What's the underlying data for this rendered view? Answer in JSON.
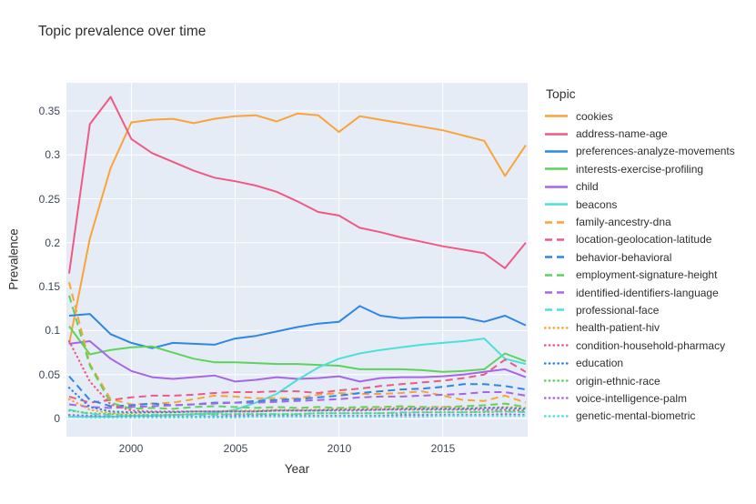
{
  "title": "Topic prevalence over time",
  "legend": {
    "title": "Topic"
  },
  "axes": {
    "x_label": "Year",
    "y_label": "Prevalence",
    "x_tick_values": [
      2000,
      2005,
      2010,
      2015
    ],
    "x_tick_labels": [
      "2000",
      "2005",
      "2010",
      "2015"
    ],
    "y_tick_values": [
      0,
      0.05,
      0.1,
      0.15,
      0.2,
      0.25,
      0.3,
      0.35
    ],
    "y_tick_labels": [
      "0",
      "0.05",
      "0.1",
      "0.15",
      "0.2",
      "0.25",
      "0.3",
      "0.35"
    ]
  },
  "colors": {
    "plot_background": "#E5ECF6",
    "gridline": "#FFFFFF",
    "text": "#2f2f2f",
    "tick_text": "#3c4656",
    "orange": "#FAA339",
    "pink": "#EE5A84",
    "blue": "#2E86E5",
    "green": "#5DD35C",
    "purple": "#A765E8",
    "cyan": "#4BE0D8"
  },
  "chart_data": {
    "type": "line",
    "title": "Topic prevalence over time",
    "xlabel": "Year",
    "ylabel": "Prevalence",
    "grid": true,
    "legend_position": "right",
    "plot_bg": "#E5ECF6",
    "xlim": [
      1996.87,
      2019.09
    ],
    "ylim": [
      -0.0207,
      0.382
    ],
    "x": [
      1997,
      1998,
      1999,
      2000,
      2001,
      2002,
      2003,
      2004,
      2005,
      2006,
      2007,
      2008,
      2009,
      2010,
      2011,
      2012,
      2013,
      2014,
      2015,
      2016,
      2017,
      2018,
      2019
    ],
    "series": [
      {
        "name": "cookies",
        "color": "#FAA339",
        "dash": "solid",
        "values": [
          0.085,
          0.205,
          0.285,
          0.337,
          0.34,
          0.341,
          0.336,
          0.341,
          0.344,
          0.345,
          0.338,
          0.347,
          0.345,
          0.326,
          0.344,
          0.34,
          0.336,
          0.332,
          0.328,
          0.322,
          0.316,
          0.276,
          0.311
        ]
      },
      {
        "name": "address-name-age",
        "color": "#EE5A84",
        "dash": "solid",
        "values": [
          0.165,
          0.335,
          0.366,
          0.318,
          0.302,
          0.292,
          0.282,
          0.274,
          0.27,
          0.265,
          0.258,
          0.247,
          0.235,
          0.231,
          0.217,
          0.212,
          0.206,
          0.201,
          0.196,
          0.192,
          0.188,
          0.171,
          0.2
        ]
      },
      {
        "name": "preferences-analyze-movements",
        "color": "#2E86E5",
        "dash": "solid",
        "values": [
          0.117,
          0.119,
          0.096,
          0.086,
          0.08,
          0.086,
          0.085,
          0.084,
          0.091,
          0.094,
          0.099,
          0.104,
          0.108,
          0.11,
          0.128,
          0.117,
          0.114,
          0.115,
          0.115,
          0.115,
          0.11,
          0.117,
          0.106
        ]
      },
      {
        "name": "interests-exercise-profiling",
        "color": "#5DD35C",
        "dash": "solid",
        "values": [
          0.105,
          0.073,
          0.078,
          0.081,
          0.082,
          0.075,
          0.068,
          0.064,
          0.064,
          0.063,
          0.062,
          0.062,
          0.061,
          0.06,
          0.056,
          0.056,
          0.056,
          0.055,
          0.053,
          0.054,
          0.056,
          0.074,
          0.065
        ]
      },
      {
        "name": "child",
        "color": "#A765E8",
        "dash": "solid",
        "values": [
          0.085,
          0.088,
          0.068,
          0.054,
          0.047,
          0.045,
          0.047,
          0.049,
          0.042,
          0.044,
          0.047,
          0.045,
          0.046,
          0.048,
          0.042,
          0.046,
          0.047,
          0.047,
          0.048,
          0.05,
          0.053,
          0.056,
          0.047
        ]
      },
      {
        "name": "beacons",
        "color": "#4BE0D8",
        "dash": "solid",
        "values": [
          0.002,
          0.002,
          0.002,
          0.003,
          0.003,
          0.004,
          0.005,
          0.006,
          0.01,
          0.018,
          0.028,
          0.044,
          0.058,
          0.068,
          0.074,
          0.078,
          0.081,
          0.084,
          0.086,
          0.088,
          0.091,
          0.068,
          0.062
        ]
      },
      {
        "name": "family-ancestry-dna",
        "color": "#FAA339",
        "dash": "dash",
        "values": [
          0.155,
          0.062,
          0.022,
          0.016,
          0.017,
          0.018,
          0.022,
          0.026,
          0.025,
          0.023,
          0.023,
          0.023,
          0.027,
          0.029,
          0.028,
          0.028,
          0.029,
          0.031,
          0.026,
          0.021,
          0.02,
          0.026,
          0.018
        ]
      },
      {
        "name": "location-geolocation-latitude",
        "color": "#EE5A84",
        "dash": "dash",
        "values": [
          0.025,
          0.018,
          0.021,
          0.024,
          0.026,
          0.026,
          0.027,
          0.029,
          0.03,
          0.03,
          0.031,
          0.031,
          0.029,
          0.032,
          0.034,
          0.037,
          0.039,
          0.041,
          0.043,
          0.046,
          0.05,
          0.067,
          0.053
        ]
      },
      {
        "name": "behavior-behavioral",
        "color": "#2E86E5",
        "dash": "dash",
        "values": [
          0.048,
          0.021,
          0.014,
          0.015,
          0.017,
          0.015,
          0.016,
          0.018,
          0.018,
          0.02,
          0.021,
          0.022,
          0.024,
          0.026,
          0.029,
          0.031,
          0.033,
          0.034,
          0.036,
          0.039,
          0.039,
          0.037,
          0.033
        ]
      },
      {
        "name": "employment-signature-height",
        "color": "#5DD35C",
        "dash": "dash",
        "values": [
          0.14,
          0.06,
          0.018,
          0.011,
          0.012,
          0.011,
          0.013,
          0.014,
          0.013,
          0.012,
          0.013,
          0.012,
          0.013,
          0.012,
          0.013,
          0.013,
          0.014,
          0.013,
          0.013,
          0.014,
          0.015,
          0.017,
          0.013
        ]
      },
      {
        "name": "identified-identifiers-language",
        "color": "#A765E8",
        "dash": "dash",
        "values": [
          0.016,
          0.013,
          0.012,
          0.013,
          0.014,
          0.015,
          0.016,
          0.017,
          0.018,
          0.018,
          0.019,
          0.02,
          0.021,
          0.022,
          0.024,
          0.025,
          0.025,
          0.026,
          0.027,
          0.028,
          0.03,
          0.03,
          0.026
        ]
      },
      {
        "name": "professional-face",
        "color": "#4BE0D8",
        "dash": "dash",
        "values": [
          0.01,
          0.005,
          0.004,
          0.003,
          0.004,
          0.004,
          0.004,
          0.004,
          0.005,
          0.005,
          0.005,
          0.005,
          0.006,
          0.006,
          0.006,
          0.006,
          0.007,
          0.007,
          0.007,
          0.007,
          0.008,
          0.008,
          0.007
        ]
      },
      {
        "name": "health-patient-hiv",
        "color": "#FAA339",
        "dash": "dot",
        "values": [
          0.022,
          0.01,
          0.006,
          0.006,
          0.007,
          0.007,
          0.008,
          0.008,
          0.009,
          0.009,
          0.01,
          0.01,
          0.01,
          0.011,
          0.011,
          0.012,
          0.012,
          0.012,
          0.013,
          0.012,
          0.012,
          0.013,
          0.012
        ]
      },
      {
        "name": "condition-household-pharmacy",
        "color": "#EE5A84",
        "dash": "dot",
        "values": [
          0.088,
          0.042,
          0.016,
          0.009,
          0.008,
          0.008,
          0.008,
          0.008,
          0.008,
          0.008,
          0.009,
          0.009,
          0.009,
          0.009,
          0.009,
          0.01,
          0.01,
          0.01,
          0.01,
          0.01,
          0.01,
          0.01,
          0.009
        ]
      },
      {
        "name": "education",
        "color": "#2E86E5",
        "dash": "dot",
        "values": [
          0.035,
          0.013,
          0.008,
          0.007,
          0.007,
          0.007,
          0.008,
          0.008,
          0.008,
          0.008,
          0.009,
          0.009,
          0.009,
          0.01,
          0.01,
          0.01,
          0.011,
          0.011,
          0.011,
          0.011,
          0.012,
          0.012,
          0.011
        ]
      },
      {
        "name": "origin-ethnic-race",
        "color": "#5DD35C",
        "dash": "dot",
        "values": [
          0.009,
          0.006,
          0.005,
          0.004,
          0.004,
          0.004,
          0.005,
          0.005,
          0.005,
          0.005,
          0.005,
          0.005,
          0.006,
          0.006,
          0.006,
          0.006,
          0.006,
          0.007,
          0.007,
          0.007,
          0.007,
          0.008,
          0.008
        ]
      },
      {
        "name": "voice-intelligence-palm",
        "color": "#A765E8",
        "dash": "dot",
        "values": [
          0.004,
          0.003,
          0.002,
          0.002,
          0.002,
          0.002,
          0.002,
          0.002,
          0.003,
          0.003,
          0.003,
          0.003,
          0.003,
          0.003,
          0.003,
          0.003,
          0.004,
          0.004,
          0.004,
          0.004,
          0.004,
          0.005,
          0.004
        ]
      },
      {
        "name": "genetic-mental-biometric",
        "color": "#4BE0D8",
        "dash": "dot",
        "values": [
          0.002,
          0.001,
          0.001,
          0.001,
          0.001,
          0.001,
          0.001,
          0.001,
          0.001,
          0.002,
          0.002,
          0.002,
          0.002,
          0.002,
          0.002,
          0.002,
          0.002,
          0.002,
          0.003,
          0.003,
          0.003,
          0.003,
          0.003
        ]
      }
    ]
  }
}
